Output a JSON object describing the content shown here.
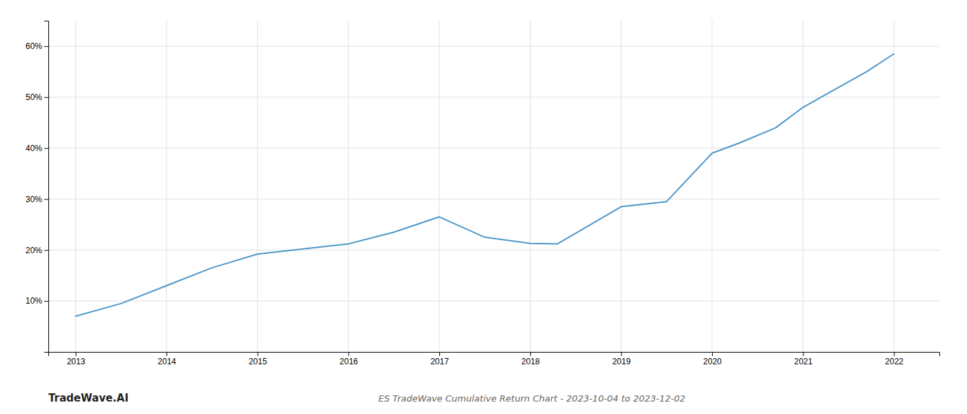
{
  "chart_data": {
    "type": "line",
    "title": "ES TradeWave Cumulative Return Chart - 2023-10-04 to 2023-12-02",
    "annotations": [
      "TradeWave.AI"
    ],
    "x": [
      2013,
      2013.5,
      2014,
      2014.5,
      2015,
      2015.5,
      2016,
      2016.5,
      2017,
      2017.5,
      2018,
      2018.3,
      2019,
      2019.5,
      2020,
      2020.3,
      2020.7,
      2021,
      2021.3,
      2021.7,
      2022
    ],
    "values": [
      7.0,
      9.5,
      13.0,
      16.5,
      19.2,
      20.2,
      21.2,
      23.5,
      26.5,
      22.5,
      21.3,
      21.2,
      28.5,
      29.5,
      39.0,
      41.0,
      44.0,
      48.0,
      51.0,
      55.0,
      58.5
    ],
    "color": "#4d96c9",
    "xlim": [
      2012.7,
      2022.5
    ],
    "ylim": [
      0,
      65
    ],
    "xticks": [
      2013,
      2014,
      2015,
      2016,
      2017,
      2018,
      2019,
      2020,
      2021,
      2022
    ],
    "yticks": [
      {
        "value": 10,
        "label": "10%"
      },
      {
        "value": 20,
        "label": "20%"
      },
      {
        "value": 30,
        "label": "30%"
      },
      {
        "value": 40,
        "label": "40%"
      },
      {
        "value": 50,
        "label": "50%"
      },
      {
        "value": 60,
        "label": "60%"
      }
    ],
    "grid": true
  }
}
